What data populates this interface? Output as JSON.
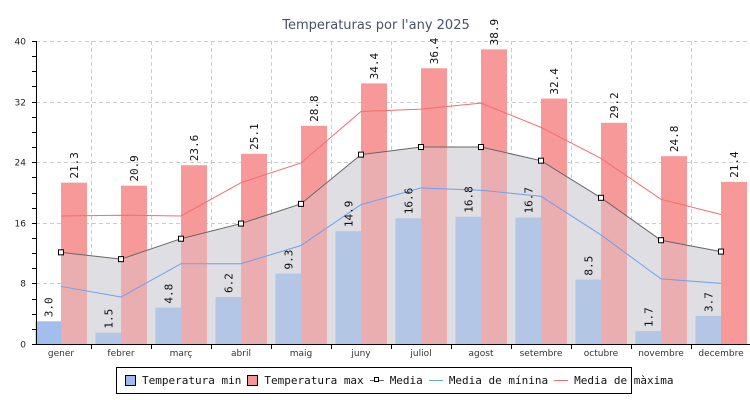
{
  "chart_data": {
    "type": "bar",
    "title": "Temperaturas por l'any 2025",
    "xlabel": "",
    "ylabel": "",
    "ylim": [
      0,
      40
    ],
    "yticks": [
      0,
      8,
      16,
      24,
      32,
      40
    ],
    "grid": true,
    "legend_position": "bottom",
    "categories": [
      "gener",
      "febrer",
      "març",
      "abril",
      "maig",
      "juny",
      "juliol",
      "agost",
      "setembre",
      "octubre",
      "novembre",
      "decembre"
    ],
    "series": [
      {
        "name": "Temperatura min",
        "kind": "bar",
        "color": "#9dbaeb",
        "values": [
          3.0,
          1.5,
          4.8,
          6.2,
          9.3,
          14.9,
          16.6,
          16.8,
          16.7,
          8.5,
          1.7,
          3.7
        ],
        "labels": [
          "3.0",
          "1.5",
          "4.8",
          "6.2",
          "9.3",
          "14.9",
          "16.6",
          "16.8",
          "16.7",
          "8.5",
          "1.7",
          "3.7"
        ]
      },
      {
        "name": "Temperatura max",
        "kind": "bar",
        "color": "#f79494",
        "values": [
          21.3,
          20.9,
          23.6,
          25.1,
          28.8,
          34.4,
          36.4,
          38.9,
          32.4,
          29.2,
          24.8,
          21.4
        ],
        "labels": [
          "21.3",
          "20.9",
          "23.6",
          "25.1",
          "28.8",
          "34.4",
          "36.4",
          "38.9",
          "32.4",
          "29.2",
          "24.8",
          "21.4"
        ]
      },
      {
        "name": "Media",
        "kind": "area-line",
        "color": "#666666",
        "fill": "#e2e2e6",
        "values": [
          12.1,
          11.2,
          13.9,
          15.9,
          18.5,
          25.0,
          26.0,
          26.0,
          24.2,
          19.3,
          13.7,
          12.2
        ]
      },
      {
        "name": "Media de mínina",
        "kind": "line",
        "color": "#6f9ff0",
        "values": [
          7.6,
          6.2,
          10.6,
          10.6,
          13.0,
          18.4,
          20.6,
          20.3,
          19.5,
          14.4,
          8.6,
          8.0
        ]
      },
      {
        "name": "Media de màxima",
        "kind": "line",
        "color": "#f06e6e",
        "values": [
          16.9,
          17.0,
          16.9,
          21.3,
          23.9,
          30.7,
          31.0,
          31.8,
          28.6,
          24.5,
          19.1,
          17.1
        ]
      }
    ]
  },
  "legend": [
    {
      "label": "Temperatura min",
      "type": "box",
      "color": "#9dbaeb"
    },
    {
      "label": "Temperatura max",
      "type": "box",
      "color": "#f79494"
    },
    {
      "label": "Media",
      "type": "marker-line",
      "color": "#666666"
    },
    {
      "label": "Media de mínina",
      "type": "line",
      "color": "#6f9ff0"
    },
    {
      "label": "Media de màxima",
      "type": "line",
      "color": "#f06e6e"
    }
  ]
}
